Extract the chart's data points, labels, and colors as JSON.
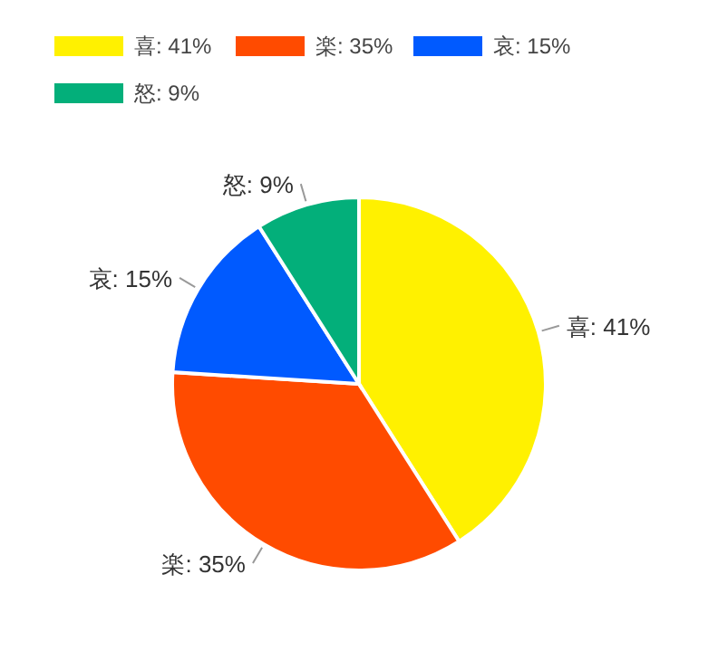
{
  "chart_data": {
    "type": "pie",
    "categories": [
      "喜: 41%",
      "楽: 35%",
      "哀: 15%",
      "怒: 9%"
    ],
    "values": [
      41,
      35,
      15,
      9
    ],
    "colors": [
      "#fff100",
      "#ff4b00",
      "#005aff",
      "#03af7a"
    ],
    "legend": "top left"
  }
}
